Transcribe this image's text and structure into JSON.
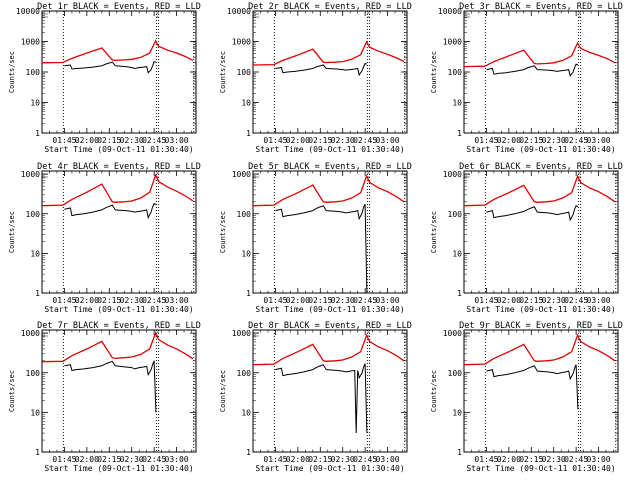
{
  "chart_data": {
    "type": "line",
    "layout": "3x3 grid of panels",
    "shared": {
      "xlabel": "Start Time (09-Oct-11 01:30:40)",
      "ylabel": "Counts/sec",
      "x_ticks": [
        "01:45",
        "02:00",
        "02:15",
        "02:30",
        "02:45",
        "03:00"
      ],
      "x_tick_minutes": [
        15,
        30,
        45,
        60,
        75,
        90
      ],
      "x_range_minutes_from_0130": [
        0,
        103
      ],
      "ylog": true,
      "y_ticks": [
        1,
        10,
        100,
        1000,
        10000
      ],
      "y_tick_labels": [
        "1",
        "10",
        "100",
        "1000",
        "10000"
      ],
      "ylim": [
        1,
        10000
      ],
      "legend": "BLACK = Events, RED = LLD",
      "vertical_markers_minutes": [
        14.3,
        76.5,
        78.0,
        101.5
      ],
      "series_colors": {
        "events": "#000000",
        "lld": "#e00000"
      }
    },
    "panels": [
      {
        "title": "Det 1r BLACK = Events, RED = LLD",
        "y_tick_labels": [
          "1",
          "10",
          "100",
          "1000",
          "10000"
        ],
        "ylim": [
          1,
          10000
        ],
        "lld": {
          "x": [
            0,
            14,
            20,
            30,
            40,
            47,
            49,
            55,
            60,
            66,
            72,
            76,
            78,
            84,
            90,
            96,
            101
          ],
          "y": [
            200,
            205,
            280,
            420,
            610,
            250,
            240,
            250,
            260,
            300,
            420,
            1050,
            700,
            520,
            420,
            320,
            240
          ]
        },
        "events": {
          "x": [
            15,
            17,
            19,
            20,
            23,
            28,
            34,
            40,
            43,
            47,
            49,
            56,
            60,
            62,
            65,
            68,
            70,
            71,
            73,
            74,
            75,
            76.2
          ],
          "y": [
            160,
            165,
            170,
            125,
            130,
            135,
            145,
            160,
            185,
            210,
            160,
            150,
            140,
            130,
            140,
            145,
            150,
            95,
            120,
            160,
            220,
            210
          ]
        }
      },
      {
        "title": "Det 2r BLACK = Events, RED = LLD",
        "y_tick_labels": [
          "1",
          "10",
          "100",
          "1000",
          "10000"
        ],
        "ylim": [
          1,
          10000
        ],
        "lld": {
          "x": [
            0,
            14,
            20,
            30,
            40,
            47,
            49,
            55,
            60,
            66,
            72,
            76,
            78,
            84,
            90,
            96,
            101
          ],
          "y": [
            170,
            175,
            240,
            360,
            560,
            210,
            205,
            210,
            220,
            260,
            370,
            980,
            650,
            480,
            380,
            290,
            220
          ]
        },
        "events": {
          "x": [
            15,
            17,
            19,
            20,
            23,
            28,
            34,
            40,
            43,
            47,
            49,
            56,
            60,
            62,
            65,
            68,
            70,
            71,
            73,
            74,
            75,
            76.2
          ],
          "y": [
            130,
            135,
            140,
            95,
            100,
            105,
            115,
            130,
            150,
            170,
            130,
            125,
            120,
            115,
            120,
            125,
            130,
            80,
            110,
            150,
            190,
            180
          ]
        }
      },
      {
        "title": "Det 3r BLACK = Events, RED = LLD",
        "y_tick_labels": [
          "1",
          "10",
          "100",
          "1000",
          "10000"
        ],
        "ylim": [
          1,
          10000
        ],
        "lld": {
          "x": [
            0,
            14,
            20,
            30,
            40,
            47,
            49,
            55,
            60,
            66,
            72,
            76,
            78,
            84,
            90,
            96,
            101
          ],
          "y": [
            150,
            155,
            220,
            340,
            520,
            190,
            185,
            190,
            200,
            240,
            340,
            900,
            600,
            440,
            350,
            270,
            200
          ]
        },
        "events": {
          "x": [
            15,
            17,
            19,
            20,
            23,
            28,
            34,
            40,
            43,
            47,
            49,
            56,
            60,
            62,
            65,
            68,
            70,
            71,
            73,
            74,
            75,
            76.2
          ],
          "y": [
            120,
            125,
            130,
            85,
            90,
            95,
            105,
            120,
            140,
            160,
            120,
            115,
            110,
            105,
            110,
            115,
            120,
            75,
            100,
            140,
            180,
            170
          ]
        }
      },
      {
        "title": "Det 4r BLACK = Events, RED = LLD",
        "y_tick_labels": [
          "1",
          "10",
          "100",
          "1000"
        ],
        "ylim": [
          1,
          1200
        ],
        "lld": {
          "x": [
            0,
            14,
            20,
            30,
            40,
            47,
            49,
            55,
            60,
            66,
            72,
            76,
            78,
            84,
            90,
            96,
            101
          ],
          "y": [
            160,
            165,
            230,
            350,
            560,
            200,
            195,
            200,
            210,
            250,
            350,
            940,
            650,
            470,
            370,
            280,
            210
          ]
        },
        "events": {
          "x": [
            15,
            17,
            19,
            20,
            23,
            28,
            34,
            40,
            43,
            47,
            49,
            56,
            60,
            62,
            65,
            68,
            70,
            71,
            73,
            74,
            75,
            76.2
          ],
          "y": [
            130,
            135,
            140,
            90,
            95,
            100,
            110,
            125,
            145,
            165,
            125,
            120,
            115,
            110,
            115,
            120,
            125,
            80,
            110,
            150,
            180,
            170
          ]
        }
      },
      {
        "title": "Det 5r BLACK = Events, RED = LLD",
        "y_tick_labels": [
          "1",
          "10",
          "100",
          "1000"
        ],
        "ylim": [
          1,
          1200
        ],
        "lld": {
          "x": [
            0,
            14,
            20,
            30,
            40,
            47,
            49,
            55,
            60,
            66,
            72,
            76,
            78,
            84,
            90,
            96,
            101
          ],
          "y": [
            160,
            165,
            230,
            340,
            530,
            200,
            195,
            200,
            210,
            250,
            340,
            900,
            620,
            450,
            360,
            270,
            200
          ]
        },
        "events": {
          "x": [
            15,
            17,
            19,
            20,
            23,
            28,
            34,
            40,
            43,
            47,
            49,
            56,
            60,
            62,
            65,
            68,
            70,
            71,
            73,
            74,
            75,
            76.2
          ],
          "y": [
            120,
            125,
            130,
            85,
            90,
            95,
            105,
            120,
            140,
            160,
            120,
            115,
            110,
            105,
            110,
            115,
            120,
            75,
            105,
            145,
            175,
            1
          ]
        }
      },
      {
        "title": "Det 6r BLACK = Events, RED = LLD",
        "y_tick_labels": [
          "1",
          "10",
          "100",
          "1000"
        ],
        "ylim": [
          1,
          1200
        ],
        "lld": {
          "x": [
            0,
            14,
            20,
            30,
            40,
            47,
            49,
            55,
            60,
            66,
            72,
            76,
            78,
            84,
            90,
            96,
            101
          ],
          "y": [
            160,
            165,
            230,
            340,
            520,
            200,
            195,
            200,
            210,
            250,
            340,
            880,
            610,
            450,
            360,
            270,
            200
          ]
        },
        "events": {
          "x": [
            15,
            17,
            19,
            20,
            23,
            28,
            34,
            40,
            43,
            47,
            49,
            56,
            60,
            62,
            65,
            68,
            70,
            71,
            73,
            74,
            75,
            76.2
          ],
          "y": [
            110,
            115,
            120,
            80,
            85,
            90,
            100,
            115,
            130,
            150,
            110,
            105,
            100,
            95,
            100,
            105,
            110,
            70,
            95,
            130,
            160,
            150
          ]
        }
      },
      {
        "title": "Det 7r BLACK = Events, RED = LLD",
        "y_tick_labels": [
          "1",
          "10",
          "100",
          "1000"
        ],
        "ylim": [
          1,
          1200
        ],
        "lld": {
          "x": [
            0,
            14,
            20,
            30,
            40,
            47,
            49,
            55,
            60,
            66,
            72,
            76,
            78,
            84,
            90,
            96,
            101
          ],
          "y": [
            190,
            195,
            270,
            400,
            620,
            240,
            230,
            240,
            250,
            290,
            400,
            1000,
            690,
            500,
            400,
            300,
            225
          ]
        },
        "events": {
          "x": [
            15,
            17,
            19,
            20,
            23,
            28,
            34,
            40,
            43,
            47,
            49,
            56,
            60,
            62,
            65,
            68,
            70,
            71,
            73,
            74,
            75,
            76.2
          ],
          "y": [
            150,
            155,
            160,
            115,
            120,
            125,
            135,
            150,
            170,
            195,
            150,
            140,
            135,
            125,
            135,
            140,
            145,
            90,
            120,
            160,
            200,
            10
          ]
        }
      },
      {
        "title": "Det 8r BLACK = Events, RED = LLD",
        "y_tick_labels": [
          "1",
          "10",
          "100",
          "1000"
        ],
        "ylim": [
          1,
          1200
        ],
        "lld": {
          "x": [
            0,
            14,
            20,
            30,
            40,
            47,
            49,
            55,
            60,
            66,
            72,
            76,
            78,
            84,
            90,
            96,
            101
          ],
          "y": [
            160,
            165,
            230,
            340,
            520,
            200,
            195,
            200,
            210,
            250,
            340,
            880,
            610,
            450,
            360,
            270,
            200
          ]
        },
        "events": {
          "x": [
            15,
            17,
            19,
            20,
            23,
            28,
            34,
            40,
            43,
            47,
            49,
            56,
            60,
            62,
            65,
            68,
            69,
            70,
            71,
            73,
            74,
            75,
            76.2
          ],
          "y": [
            120,
            125,
            130,
            85,
            90,
            95,
            105,
            120,
            140,
            160,
            120,
            115,
            110,
            105,
            110,
            115,
            3,
            115,
            75,
            100,
            140,
            170,
            3
          ]
        }
      },
      {
        "title": "Det 9r BLACK = Events, RED = LLD",
        "y_tick_labels": [
          "1",
          "10",
          "100",
          "1000"
        ],
        "ylim": [
          1,
          1200
        ],
        "lld": {
          "x": [
            0,
            14,
            20,
            30,
            40,
            47,
            49,
            55,
            60,
            66,
            72,
            76,
            78,
            84,
            90,
            96,
            101
          ],
          "y": [
            160,
            165,
            230,
            340,
            520,
            200,
            195,
            200,
            210,
            250,
            340,
            880,
            610,
            450,
            360,
            270,
            200
          ]
        },
        "events": {
          "x": [
            15,
            17,
            19,
            20,
            23,
            28,
            34,
            40,
            43,
            47,
            49,
            56,
            60,
            62,
            65,
            68,
            70,
            71,
            73,
            74,
            75,
            76.2
          ],
          "y": [
            110,
            115,
            120,
            80,
            85,
            90,
            100,
            115,
            130,
            150,
            110,
            105,
            100,
            95,
            100,
            105,
            110,
            70,
            95,
            130,
            160,
            12
          ]
        }
      }
    ]
  }
}
